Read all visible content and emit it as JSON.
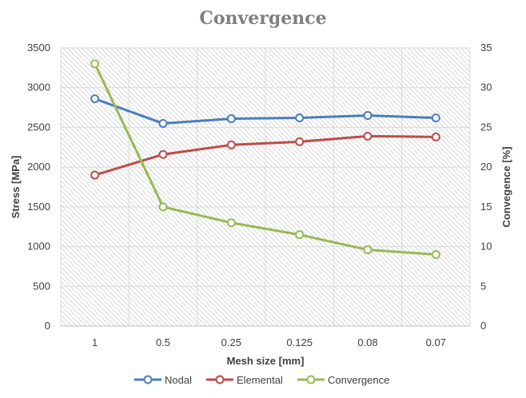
{
  "chart_data": {
    "type": "line",
    "title": "Convergence",
    "xlabel": "Mesh size [mm]",
    "ylabel": "Stress [MPa]",
    "y2label": "Convegence [%]",
    "categories": [
      "1",
      "0.5",
      "0.25",
      "0.125",
      "0.08",
      "0.07"
    ],
    "ylim": [
      0,
      3500
    ],
    "y2lim": [
      0,
      35
    ],
    "yticks": [
      "0",
      "500",
      "1000",
      "1500",
      "2000",
      "2500",
      "3000",
      "3500"
    ],
    "y2ticks": [
      "0",
      "5",
      "10",
      "15",
      "20",
      "25",
      "30",
      "35"
    ],
    "grid": true,
    "legend_position": "bottom",
    "series": [
      {
        "name": "Nodal",
        "axis": "left",
        "color": "#4a7ebb",
        "values": [
          2860,
          2550,
          2610,
          2620,
          2650,
          2620
        ]
      },
      {
        "name": "Elemental",
        "axis": "left",
        "color": "#be4b48",
        "values": [
          1900,
          2160,
          2280,
          2320,
          2390,
          2380
        ]
      },
      {
        "name": "Convergence",
        "axis": "right",
        "color": "#98b954",
        "values": [
          33,
          15,
          13,
          11.5,
          9.6,
          9
        ]
      }
    ]
  }
}
